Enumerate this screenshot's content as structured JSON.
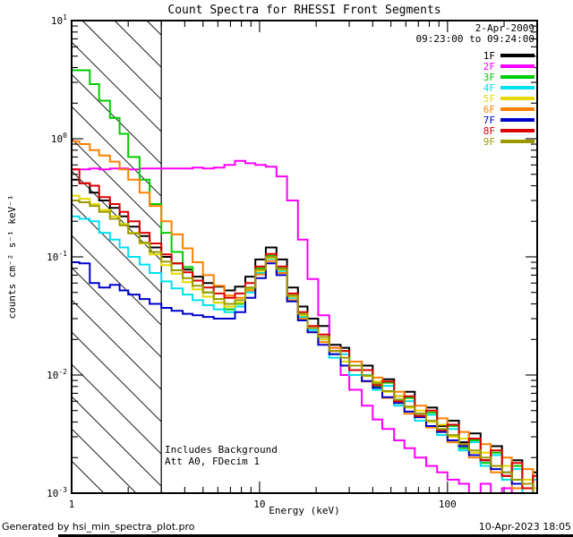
{
  "title": "Count Spectra for RHESSI Front Segments",
  "header": {
    "date": "2-Apr-2009",
    "time_range": "09:23:00 to 09:24:00"
  },
  "annotations": {
    "line1": "Includes Background",
    "line2": "Att A0, FDecim 1"
  },
  "footer": {
    "left": "Generated by hsi_min_spectra_plot.pro",
    "right": "10-Apr-2023 18:05"
  },
  "chart_data": {
    "type": "line",
    "scale": "log-log",
    "title": "Count Spectra for RHESSI Front Segments",
    "xlabel": "Energy (keV)",
    "ylabel": "counts cm⁻² s⁻¹ keV⁻¹",
    "xlim": [
      1,
      300
    ],
    "ylim": [
      0.001,
      10
    ],
    "x_major_ticks": [
      1,
      10,
      100
    ],
    "x_tick_labels": [
      "1",
      "10",
      "100"
    ],
    "y_tick_exponents": [
      -3,
      -2,
      -1,
      0,
      1
    ],
    "y_tick_labels": [
      "10⁻³",
      "10⁻²",
      "10⁻¹",
      "10⁰",
      "10¹"
    ],
    "grid": false,
    "legend_position": "top-right",
    "hatch_region": {
      "x0": 1,
      "x1": 3
    },
    "x": [
      1.0,
      1.1,
      1.25,
      1.4,
      1.6,
      1.8,
      2.0,
      2.3,
      2.6,
      3.0,
      3.4,
      3.9,
      4.4,
      5.0,
      5.7,
      6.5,
      7.4,
      8.4,
      9.5,
      10.8,
      12.3,
      14,
      16,
      18,
      20.5,
      23.5,
      27,
      30,
      35,
      40,
      45,
      52,
      59,
      67,
      77,
      88,
      100,
      115,
      130,
      150,
      170,
      195,
      220,
      250,
      285
    ],
    "series": [
      {
        "name": "1F",
        "color": "#000000",
        "values": [
          0.45,
          0.42,
          0.35,
          0.3,
          0.26,
          0.22,
          0.18,
          0.15,
          0.12,
          0.1,
          0.088,
          0.078,
          0.068,
          0.06,
          0.056,
          0.052,
          0.056,
          0.068,
          0.095,
          0.12,
          0.095,
          0.055,
          0.038,
          0.03,
          0.026,
          0.018,
          0.017,
          0.013,
          0.012,
          0.0085,
          0.0092,
          0.0066,
          0.0072,
          0.0047,
          0.0053,
          0.0037,
          0.0041,
          0.0027,
          0.0032,
          0.0019,
          0.0025,
          0.0014,
          0.0019,
          0.0011,
          0.0015
        ]
      },
      {
        "name": "2F",
        "color": "#ff00ff",
        "values": [
          0.55,
          0.55,
          0.56,
          0.55,
          0.56,
          0.56,
          0.55,
          0.56,
          0.56,
          0.56,
          0.56,
          0.56,
          0.57,
          0.56,
          0.57,
          0.6,
          0.65,
          0.62,
          0.6,
          0.58,
          0.48,
          0.3,
          0.14,
          0.065,
          0.032,
          0.017,
          0.01,
          0.0075,
          0.0055,
          0.0042,
          0.0035,
          0.0028,
          0.0024,
          0.002,
          0.0017,
          0.0015,
          0.0013,
          0.0012,
          0.001,
          0.0012,
          0.001,
          0.0011,
          0.001,
          0.0011,
          0.001
        ]
      },
      {
        "name": "3F",
        "color": "#00cc00",
        "values": [
          3.8,
          3.8,
          2.9,
          2.1,
          1.5,
          1.1,
          0.7,
          0.45,
          0.28,
          0.16,
          0.11,
          0.082,
          0.063,
          0.05,
          0.041,
          0.036,
          0.04,
          0.054,
          0.08,
          0.102,
          0.08,
          0.047,
          0.032,
          0.025,
          0.021,
          0.015,
          0.016,
          0.011,
          0.011,
          0.008,
          0.0086,
          0.0058,
          0.0064,
          0.0044,
          0.0048,
          0.0033,
          0.0037,
          0.0024,
          0.0028,
          0.0018,
          0.0022,
          0.0013,
          0.0017,
          0.0011,
          0.0013
        ]
      },
      {
        "name": "4F",
        "color": "#00e0ee",
        "values": [
          0.22,
          0.21,
          0.2,
          0.16,
          0.14,
          0.12,
          0.1,
          0.086,
          0.073,
          0.062,
          0.054,
          0.048,
          0.043,
          0.039,
          0.036,
          0.034,
          0.038,
          0.05,
          0.073,
          0.096,
          0.076,
          0.045,
          0.031,
          0.024,
          0.02,
          0.014,
          0.015,
          0.01,
          0.01,
          0.0075,
          0.0081,
          0.0055,
          0.006,
          0.0041,
          0.0046,
          0.0031,
          0.0035,
          0.0023,
          0.0027,
          0.0017,
          0.0021,
          0.0013,
          0.0016,
          0.001,
          0.0013
        ]
      },
      {
        "name": "5F",
        "color": "#e6d800",
        "values": [
          0.33,
          0.31,
          0.28,
          0.25,
          0.22,
          0.19,
          0.16,
          0.13,
          0.105,
          0.085,
          0.072,
          0.061,
          0.053,
          0.046,
          0.041,
          0.038,
          0.041,
          0.053,
          0.076,
          0.098,
          0.078,
          0.046,
          0.032,
          0.025,
          0.02,
          0.016,
          0.013,
          0.012,
          0.0098,
          0.0088,
          0.0072,
          0.0066,
          0.0053,
          0.005,
          0.004,
          0.0038,
          0.003,
          0.0029,
          0.0022,
          0.0022,
          0.0017,
          0.0017,
          0.0013,
          0.0013,
          0.0011
        ]
      },
      {
        "name": "6F",
        "color": "#ff8000",
        "values": [
          0.95,
          0.9,
          0.8,
          0.72,
          0.64,
          0.55,
          0.45,
          0.35,
          0.27,
          0.2,
          0.155,
          0.118,
          0.09,
          0.07,
          0.057,
          0.047,
          0.045,
          0.052,
          0.071,
          0.092,
          0.073,
          0.043,
          0.03,
          0.023,
          0.019,
          0.017,
          0.012,
          0.013,
          0.0088,
          0.0095,
          0.0064,
          0.0072,
          0.0047,
          0.0055,
          0.0036,
          0.0043,
          0.0027,
          0.0033,
          0.002,
          0.0026,
          0.0015,
          0.002,
          0.0011,
          0.0016,
          0.001
        ]
      },
      {
        "name": "7F",
        "color": "#0000cc",
        "values": [
          0.09,
          0.088,
          0.06,
          0.055,
          0.058,
          0.052,
          0.048,
          0.044,
          0.04,
          0.037,
          0.035,
          0.033,
          0.032,
          0.031,
          0.03,
          0.03,
          0.034,
          0.045,
          0.066,
          0.088,
          0.07,
          0.042,
          0.029,
          0.023,
          0.018,
          0.015,
          0.012,
          0.011,
          0.0089,
          0.0078,
          0.0065,
          0.0058,
          0.0049,
          0.0044,
          0.0037,
          0.0033,
          0.0028,
          0.0025,
          0.0021,
          0.0019,
          0.0016,
          0.0015,
          0.0012,
          0.0012,
          0.001
        ]
      },
      {
        "name": "8F",
        "color": "#dd0000",
        "values": [
          0.55,
          0.42,
          0.4,
          0.32,
          0.28,
          0.24,
          0.2,
          0.16,
          0.13,
          0.105,
          0.088,
          0.074,
          0.063,
          0.055,
          0.049,
          0.045,
          0.049,
          0.06,
          0.083,
          0.106,
          0.083,
          0.049,
          0.034,
          0.026,
          0.022,
          0.016,
          0.016,
          0.011,
          0.011,
          0.0082,
          0.0088,
          0.006,
          0.0066,
          0.0045,
          0.005,
          0.0034,
          0.0038,
          0.0026,
          0.0029,
          0.0019,
          0.0023,
          0.0014,
          0.0018,
          0.0011,
          0.0014
        ]
      },
      {
        "name": "9F",
        "color": "#9a9a00",
        "values": [
          0.3,
          0.29,
          0.27,
          0.24,
          0.21,
          0.185,
          0.158,
          0.132,
          0.11,
          0.091,
          0.077,
          0.066,
          0.057,
          0.05,
          0.044,
          0.04,
          0.043,
          0.055,
          0.078,
          0.1,
          0.079,
          0.047,
          0.033,
          0.025,
          0.021,
          0.016,
          0.014,
          0.012,
          0.0099,
          0.0085,
          0.0073,
          0.0062,
          0.0054,
          0.0047,
          0.0041,
          0.0035,
          0.0031,
          0.0026,
          0.0023,
          0.002,
          0.0017,
          0.0015,
          0.0013,
          0.0012,
          0.001
        ]
      }
    ]
  }
}
